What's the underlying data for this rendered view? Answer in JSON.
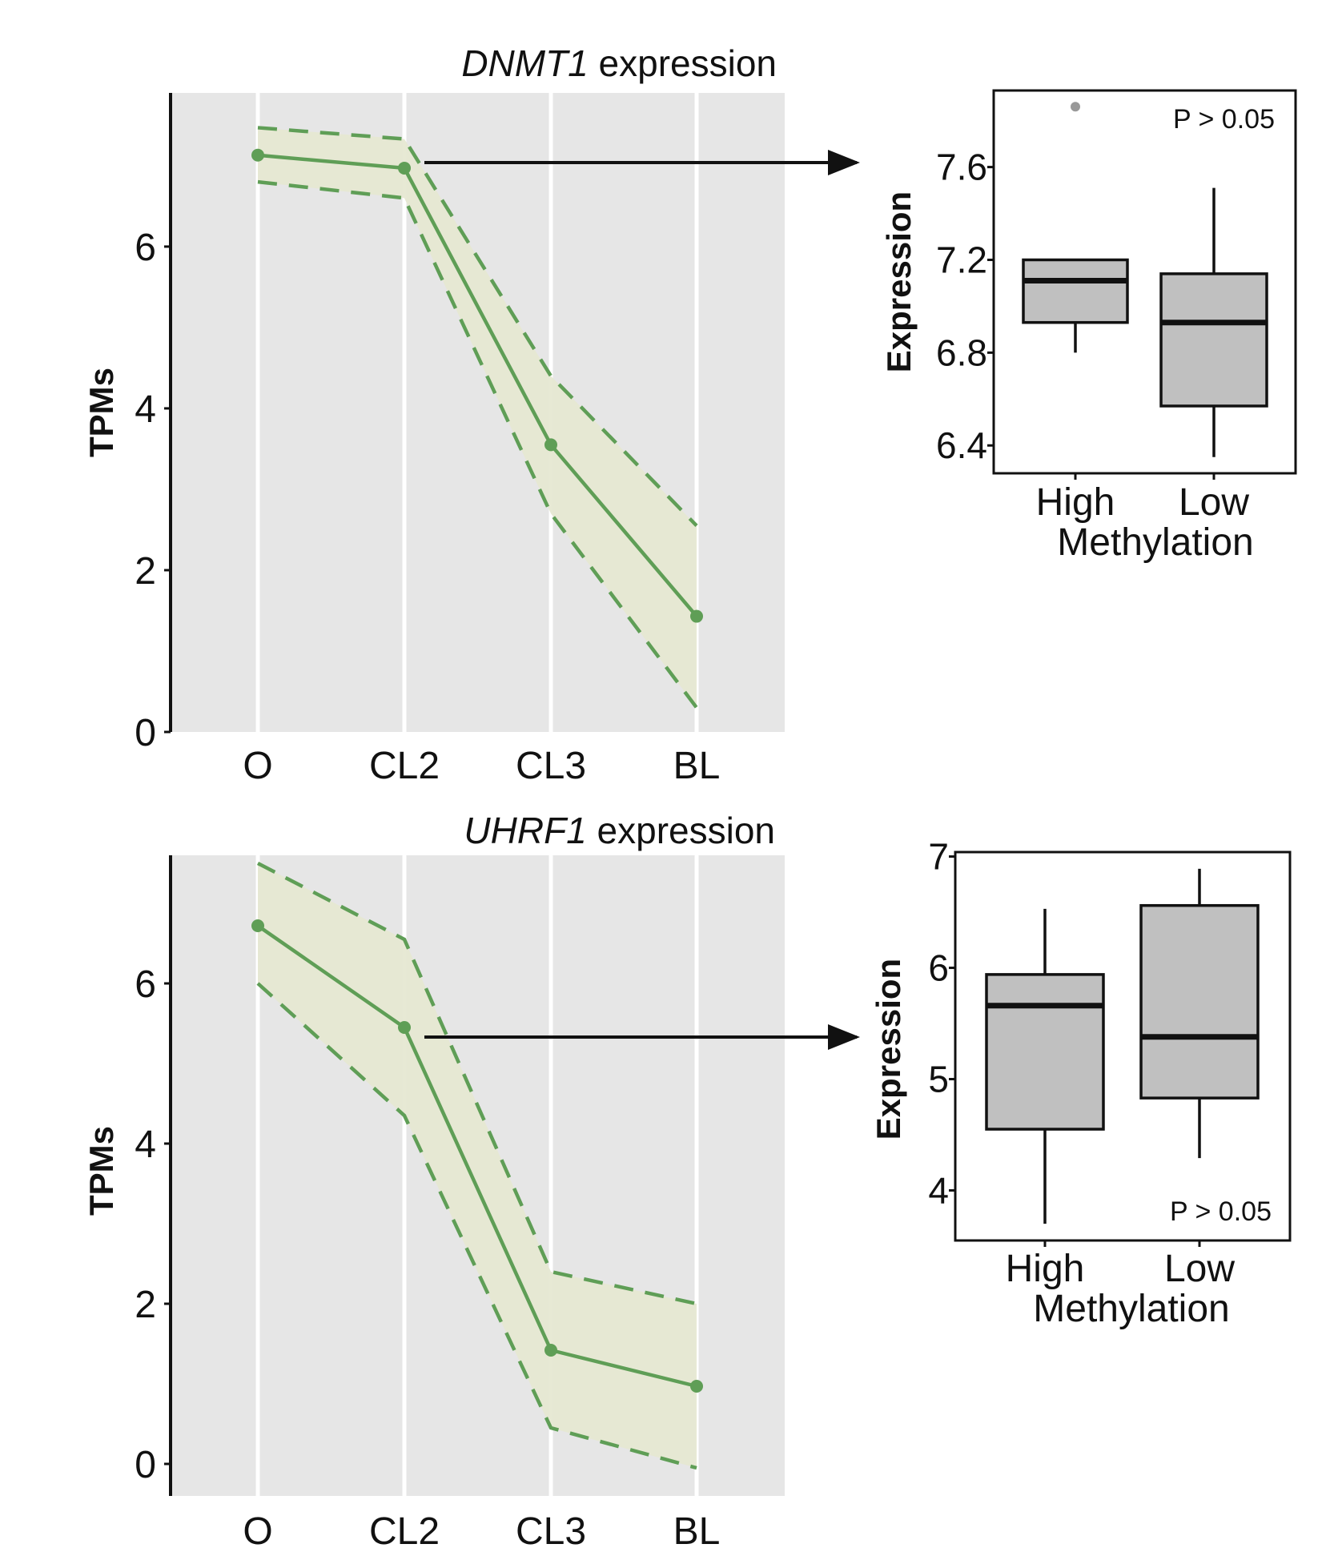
{
  "figure": {
    "arrow_description": ""
  },
  "chart_data": [
    {
      "id": "dnmt1_line",
      "type": "line",
      "title_gene": "DNMT1",
      "title_suffix": " expression",
      "categories": [
        "O",
        "CL2",
        "CL3",
        "BL"
      ],
      "ylabel": "TPMs",
      "ylim": [
        0,
        7.9
      ],
      "yticks": [
        0,
        2,
        4,
        6
      ],
      "series": [
        {
          "name": "mean",
          "values": [
            7.13,
            6.97,
            3.55,
            1.43
          ]
        },
        {
          "name": "upper",
          "values": [
            7.47,
            7.33,
            4.4,
            2.55
          ]
        },
        {
          "name": "lower",
          "values": [
            6.8,
            6.6,
            2.7,
            0.3
          ]
        }
      ],
      "colors": {
        "line": "#5f9e56",
        "band": "#e6e8d2",
        "panel": "#e6e6e6"
      }
    },
    {
      "id": "dnmt1_box",
      "type": "box",
      "xlabel": "Methylation",
      "ylabel": "Expression",
      "categories": [
        "High",
        "Low"
      ],
      "ylim": [
        6.28,
        7.93
      ],
      "yticks": [
        6.4,
        6.8,
        7.2,
        7.6
      ],
      "ytick_labels": [
        "6.4",
        "6.8",
        "7.2",
        "7.6"
      ],
      "boxes": [
        {
          "whisker_low": 6.8,
          "q1": 6.93,
          "median": 7.11,
          "q3": 7.2,
          "whisker_high": 7.2,
          "outliers": [
            7.86
          ]
        },
        {
          "whisker_low": 6.35,
          "q1": 6.57,
          "median": 6.93,
          "q3": 7.14,
          "whisker_high": 7.51,
          "outliers": []
        }
      ],
      "annotation": "P > 0.05",
      "annotation_position": "top-right",
      "colors": {
        "box": "#c0c0c0",
        "outlier": "#999999"
      }
    },
    {
      "id": "uhrf1_line",
      "type": "line",
      "title_gene": "UHRF1",
      "title_suffix": " expression",
      "categories": [
        "O",
        "CL2",
        "CL3",
        "BL"
      ],
      "ylabel": "TPMs",
      "ylim": [
        -0.4,
        7.6
      ],
      "yticks": [
        0,
        2,
        4,
        6
      ],
      "series": [
        {
          "name": "mean",
          "values": [
            6.72,
            5.45,
            1.42,
            0.97
          ]
        },
        {
          "name": "upper",
          "values": [
            7.5,
            6.55,
            2.4,
            2.0
          ]
        },
        {
          "name": "lower",
          "values": [
            6.0,
            4.35,
            0.45,
            -0.05
          ]
        }
      ],
      "colors": {
        "line": "#5f9e56",
        "band": "#e6e8d2",
        "panel": "#e6e6e6"
      }
    },
    {
      "id": "uhrf1_box",
      "type": "box",
      "xlabel": "Methylation",
      "ylabel": "Expression",
      "categories": [
        "High",
        "Low"
      ],
      "ylim": [
        3.55,
        7.04
      ],
      "yticks": [
        4,
        5,
        6,
        7
      ],
      "ytick_labels": [
        "4",
        "5",
        "6",
        "7"
      ],
      "boxes": [
        {
          "whisker_low": 3.7,
          "q1": 4.55,
          "median": 5.66,
          "q3": 5.94,
          "whisker_high": 6.53,
          "outliers": []
        },
        {
          "whisker_low": 4.29,
          "q1": 4.83,
          "median": 5.38,
          "q3": 6.56,
          "whisker_high": 6.89,
          "outliers": []
        }
      ],
      "annotation": "P > 0.05",
      "annotation_position": "bottom-right",
      "colors": {
        "box": "#c0c0c0",
        "outlier": "#999999"
      }
    }
  ]
}
